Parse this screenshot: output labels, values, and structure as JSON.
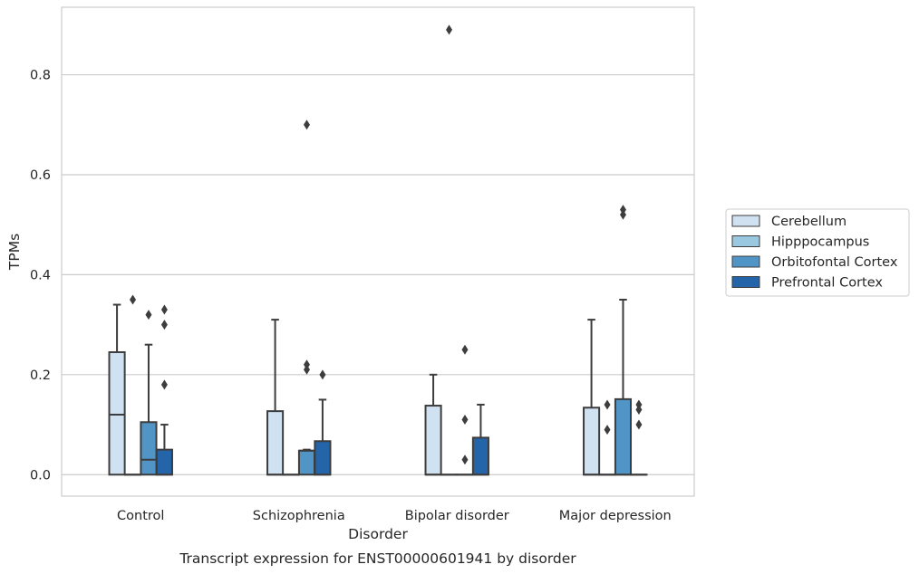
{
  "chart_data": {
    "type": "box",
    "caption": "Transcript expression for ENST00000601941 by disorder",
    "xlabel": "Disorder",
    "ylabel": "TPMs",
    "ylim": [
      -0.043,
      0.935
    ],
    "yticks": [
      0.0,
      0.2,
      0.4,
      0.6,
      0.8
    ],
    "ytick_labels": [
      "0.0",
      "0.2",
      "0.4",
      "0.6",
      "0.8"
    ],
    "grid": "horizontal",
    "legend_position": "right",
    "categories": [
      "Control",
      "Schizophrenia",
      "Bipolar disorder",
      "Major depression"
    ],
    "series": [
      {
        "name": "Cerebellum",
        "color": "#d0e1f2",
        "boxes": [
          {
            "q1": 0.0,
            "median": 0.12,
            "q3": 0.245,
            "whisker_low": 0.0,
            "whisker_high": 0.34,
            "outliers": []
          },
          {
            "q1": 0.0,
            "median": 0.0,
            "q3": 0.127,
            "whisker_low": 0.0,
            "whisker_high": 0.31,
            "outliers": []
          },
          {
            "q1": 0.0,
            "median": 0.0,
            "q3": 0.138,
            "whisker_low": 0.0,
            "whisker_high": 0.2,
            "outliers": []
          },
          {
            "q1": 0.0,
            "median": 0.0,
            "q3": 0.134,
            "whisker_low": 0.0,
            "whisker_high": 0.31,
            "outliers": []
          }
        ]
      },
      {
        "name": "Hipppocampus",
        "color": "#9ac8e0",
        "boxes": [
          {
            "q1": 0.0,
            "median": 0.0,
            "q3": 0.0,
            "whisker_low": 0.0,
            "whisker_high": 0.0,
            "outliers": [
              0.35
            ]
          },
          {
            "q1": 0.0,
            "median": 0.0,
            "q3": 0.0,
            "whisker_low": 0.0,
            "whisker_high": 0.0,
            "outliers": []
          },
          {
            "q1": 0.0,
            "median": 0.0,
            "q3": 0.0,
            "whisker_low": 0.0,
            "whisker_high": 0.0,
            "outliers": [
              0.89
            ]
          },
          {
            "q1": 0.0,
            "median": 0.0,
            "q3": 0.0,
            "whisker_low": 0.0,
            "whisker_high": 0.0,
            "outliers": [
              0.14,
              0.09
            ]
          }
        ]
      },
      {
        "name": "Orbitofontal Cortex",
        "color": "#5195c7",
        "boxes": [
          {
            "q1": 0.0,
            "median": 0.03,
            "q3": 0.105,
            "whisker_low": 0.0,
            "whisker_high": 0.26,
            "outliers": [
              0.32
            ]
          },
          {
            "q1": 0.0,
            "median": 0.048,
            "q3": 0.048,
            "whisker_low": 0.0,
            "whisker_high": 0.05,
            "outliers": [
              0.7,
              0.22,
              0.21
            ]
          },
          {
            "q1": 0.0,
            "median": 0.0,
            "q3": 0.0,
            "whisker_low": 0.0,
            "whisker_high": 0.0,
            "outliers": [
              0.25,
              0.11,
              0.03
            ]
          },
          {
            "q1": 0.0,
            "median": 0.0,
            "q3": 0.151,
            "whisker_low": 0.0,
            "whisker_high": 0.35,
            "outliers": [
              0.53,
              0.52
            ]
          }
        ]
      },
      {
        "name": "Prefrontal Cortex",
        "color": "#2464a8",
        "boxes": [
          {
            "q1": 0.0,
            "median": 0.0,
            "q3": 0.05,
            "whisker_low": 0.0,
            "whisker_high": 0.1,
            "outliers": [
              0.33,
              0.3,
              0.18
            ]
          },
          {
            "q1": 0.0,
            "median": 0.0,
            "q3": 0.067,
            "whisker_low": 0.0,
            "whisker_high": 0.15,
            "outliers": [
              0.2
            ]
          },
          {
            "q1": 0.0,
            "median": 0.0,
            "q3": 0.074,
            "whisker_low": 0.0,
            "whisker_high": 0.14,
            "outliers": []
          },
          {
            "q1": 0.0,
            "median": 0.0,
            "q3": 0.0,
            "whisker_low": 0.0,
            "whisker_high": 0.0,
            "outliers": [
              0.14,
              0.13,
              0.1
            ]
          }
        ]
      }
    ]
  }
}
